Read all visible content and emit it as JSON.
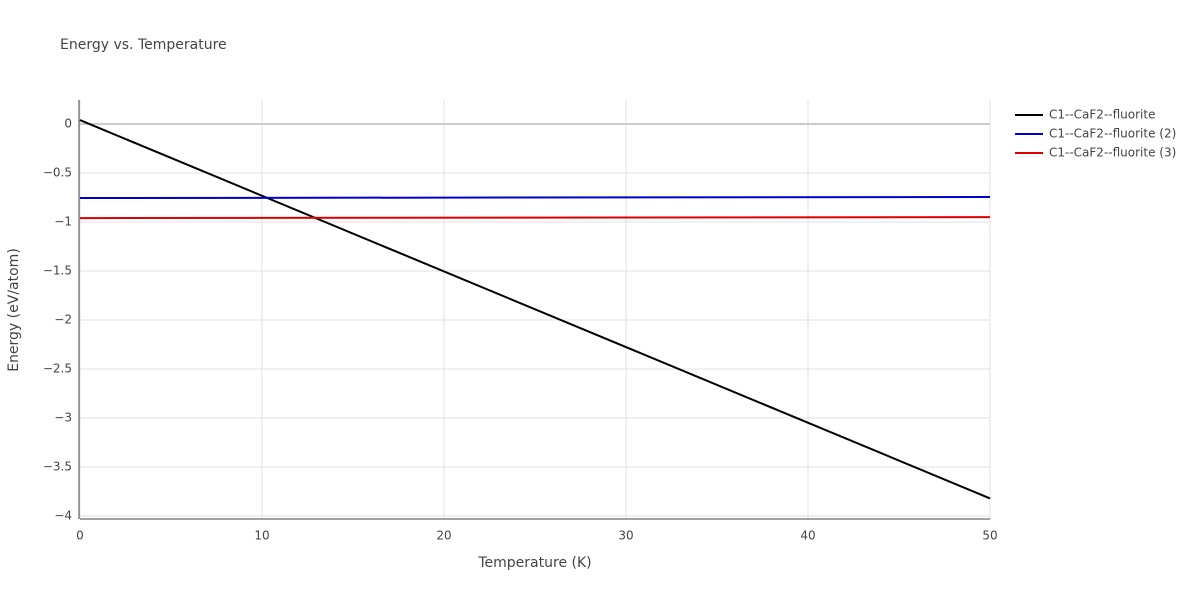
{
  "chart_data": {
    "type": "line",
    "title": "Energy vs. Temperature",
    "x_label": "Temperature (K)",
    "y_label": "Energy (eV/atom)",
    "x": [
      0,
      50
    ],
    "series": [
      {
        "name": "C1--CaF2--fluorite",
        "color": "#000000",
        "values": [
          0.04,
          -3.82
        ]
      },
      {
        "name": "C1--CaF2--fluorite (2)",
        "color": "#0000cc",
        "values": [
          -0.755,
          -0.745
        ]
      },
      {
        "name": "C1--CaF2--fluorite (3)",
        "color": "#dd0000",
        "values": [
          -0.96,
          -0.95
        ]
      }
    ],
    "xlim": [
      0,
      50
    ],
    "xticks": [
      0,
      10,
      20,
      30,
      40,
      50
    ],
    "ylim": [
      -4.03,
      0.245
    ],
    "yticks": [
      0,
      {
        "value": -0.5,
        "label": "−0.5"
      },
      {
        "value": -1,
        "label": "−1"
      },
      {
        "value": -1.5,
        "label": "−1.5"
      },
      {
        "value": -2,
        "label": "−2"
      },
      {
        "value": -2.5,
        "label": "−2.5"
      },
      {
        "value": -3,
        "label": "−3"
      },
      {
        "value": -3.5,
        "label": "−3.5"
      },
      {
        "value": -4,
        "label": "−4"
      }
    ],
    "grid": true
  }
}
